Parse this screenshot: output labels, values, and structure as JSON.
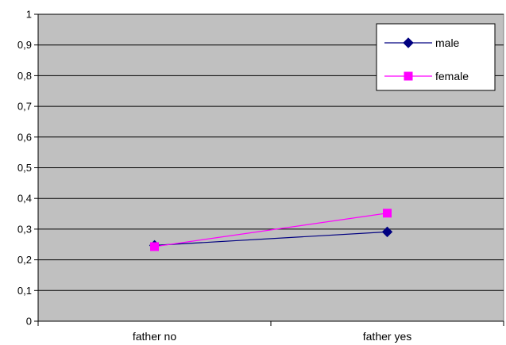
{
  "chart_data": {
    "type": "line",
    "title": "",
    "xlabel": "",
    "ylabel": "",
    "categories": [
      "father no",
      "father yes"
    ],
    "ylim": [
      0,
      1
    ],
    "yticks": [
      "0",
      "0,1",
      "0,2",
      "0,3",
      "0,4",
      "0,5",
      "0,6",
      "0,7",
      "0,8",
      "0,9",
      "1"
    ],
    "grid": true,
    "legend_position": "top-right",
    "plot_background": "#c0c0c0",
    "series": [
      {
        "name": "male",
        "values": [
          0.247,
          0.291
        ],
        "color": "#000080",
        "marker": "diamond"
      },
      {
        "name": "female",
        "values": [
          0.243,
          0.352
        ],
        "color": "#ff00ff",
        "marker": "square"
      }
    ]
  }
}
